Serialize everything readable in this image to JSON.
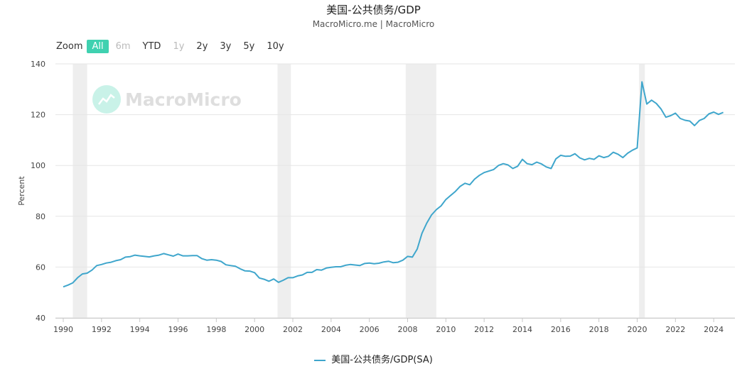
{
  "header": {
    "title": "美国-公共债务/GDP",
    "subtitle": "MacroMicro.me | MacroMicro"
  },
  "zoom": {
    "label": "Zoom",
    "buttons": [
      {
        "label": "All",
        "state": "active"
      },
      {
        "label": "6m",
        "state": "disabled"
      },
      {
        "label": "YTD",
        "state": "normal"
      },
      {
        "label": "1y",
        "state": "disabled"
      },
      {
        "label": "2y",
        "state": "normal"
      },
      {
        "label": "3y",
        "state": "normal"
      },
      {
        "label": "5y",
        "state": "normal"
      },
      {
        "label": "10y",
        "state": "normal"
      }
    ]
  },
  "watermark": {
    "text": "MacroMicro",
    "icon": "chart-logo-icon"
  },
  "colors": {
    "line": "#3fa6cc",
    "recession_band": "#eeeeee",
    "gridline": "#e6e6e6",
    "accent": "#3fd1b0"
  },
  "chart_data": {
    "type": "line",
    "title": "美国-公共债务/GDP",
    "subtitle": "MacroMicro.me | MacroMicro",
    "ylabel": "Percent",
    "xlabel": "",
    "xlim": [
      1990,
      2024.7
    ],
    "ylim": [
      40,
      140
    ],
    "yticks": [
      40,
      60,
      80,
      100,
      120,
      140
    ],
    "xticks": [
      1990,
      1992,
      1994,
      1996,
      1998,
      2000,
      2002,
      2004,
      2006,
      2008,
      2010,
      2012,
      2014,
      2016,
      2018,
      2020,
      2022,
      2024
    ],
    "grid": true,
    "legend_position": "bottom-center",
    "recessions": [
      [
        1990.5,
        1991.25
      ],
      [
        2001.2,
        2001.9
      ],
      [
        2007.9,
        2009.5
      ],
      [
        2020.1,
        2020.4
      ]
    ],
    "series": [
      {
        "name": "美国-公共债务/GDP(SA)",
        "points": [
          [
            1990.0,
            52.2
          ],
          [
            1990.25,
            52.9
          ],
          [
            1990.5,
            53.8
          ],
          [
            1990.75,
            55.8
          ],
          [
            1991.0,
            57.3
          ],
          [
            1991.25,
            57.6
          ],
          [
            1991.5,
            58.8
          ],
          [
            1991.75,
            60.6
          ],
          [
            1992.0,
            61.0
          ],
          [
            1992.25,
            61.6
          ],
          [
            1992.5,
            61.9
          ],
          [
            1992.75,
            62.5
          ],
          [
            1993.0,
            62.9
          ],
          [
            1993.25,
            63.9
          ],
          [
            1993.5,
            64.1
          ],
          [
            1993.75,
            64.7
          ],
          [
            1994.0,
            64.4
          ],
          [
            1994.25,
            64.2
          ],
          [
            1994.5,
            64.0
          ],
          [
            1994.75,
            64.4
          ],
          [
            1995.0,
            64.7
          ],
          [
            1995.25,
            65.3
          ],
          [
            1995.5,
            64.8
          ],
          [
            1995.75,
            64.3
          ],
          [
            1996.0,
            65.1
          ],
          [
            1996.25,
            64.4
          ],
          [
            1996.5,
            64.4
          ],
          [
            1996.75,
            64.5
          ],
          [
            1997.0,
            64.5
          ],
          [
            1997.25,
            63.3
          ],
          [
            1997.5,
            62.7
          ],
          [
            1997.75,
            62.9
          ],
          [
            1998.0,
            62.7
          ],
          [
            1998.25,
            62.2
          ],
          [
            1998.5,
            60.9
          ],
          [
            1998.75,
            60.6
          ],
          [
            1999.0,
            60.3
          ],
          [
            1999.25,
            59.3
          ],
          [
            1999.5,
            58.5
          ],
          [
            1999.75,
            58.4
          ],
          [
            2000.0,
            57.8
          ],
          [
            2000.25,
            55.7
          ],
          [
            2000.5,
            55.2
          ],
          [
            2000.75,
            54.4
          ],
          [
            2001.0,
            55.3
          ],
          [
            2001.25,
            54.0
          ],
          [
            2001.5,
            54.8
          ],
          [
            2001.75,
            55.8
          ],
          [
            2002.0,
            55.8
          ],
          [
            2002.25,
            56.5
          ],
          [
            2002.5,
            56.9
          ],
          [
            2002.75,
            57.9
          ],
          [
            2003.0,
            57.9
          ],
          [
            2003.25,
            59.0
          ],
          [
            2003.5,
            58.8
          ],
          [
            2003.75,
            59.6
          ],
          [
            2004.0,
            59.9
          ],
          [
            2004.25,
            60.1
          ],
          [
            2004.5,
            60.1
          ],
          [
            2004.75,
            60.7
          ],
          [
            2005.0,
            61.0
          ],
          [
            2005.25,
            60.8
          ],
          [
            2005.5,
            60.6
          ],
          [
            2005.75,
            61.4
          ],
          [
            2006.0,
            61.6
          ],
          [
            2006.25,
            61.3
          ],
          [
            2006.5,
            61.5
          ],
          [
            2006.75,
            62.0
          ],
          [
            2007.0,
            62.3
          ],
          [
            2007.25,
            61.7
          ],
          [
            2007.5,
            61.9
          ],
          [
            2007.75,
            62.7
          ],
          [
            2008.0,
            64.2
          ],
          [
            2008.25,
            63.9
          ],
          [
            2008.5,
            67.1
          ],
          [
            2008.75,
            73.3
          ],
          [
            2009.0,
            77.3
          ],
          [
            2009.25,
            80.5
          ],
          [
            2009.5,
            82.6
          ],
          [
            2009.75,
            84.1
          ],
          [
            2010.0,
            86.6
          ],
          [
            2010.25,
            88.2
          ],
          [
            2010.5,
            89.8
          ],
          [
            2010.75,
            91.8
          ],
          [
            2011.0,
            93.0
          ],
          [
            2011.25,
            92.4
          ],
          [
            2011.5,
            94.6
          ],
          [
            2011.75,
            96.1
          ],
          [
            2012.0,
            97.2
          ],
          [
            2012.25,
            97.8
          ],
          [
            2012.5,
            98.4
          ],
          [
            2012.75,
            100.0
          ],
          [
            2013.0,
            100.7
          ],
          [
            2013.25,
            100.2
          ],
          [
            2013.5,
            98.8
          ],
          [
            2013.75,
            99.7
          ],
          [
            2014.0,
            102.4
          ],
          [
            2014.25,
            100.7
          ],
          [
            2014.5,
            100.3
          ],
          [
            2014.75,
            101.3
          ],
          [
            2015.0,
            100.6
          ],
          [
            2015.25,
            99.4
          ],
          [
            2015.5,
            98.8
          ],
          [
            2015.75,
            102.6
          ],
          [
            2016.0,
            104.0
          ],
          [
            2016.25,
            103.6
          ],
          [
            2016.5,
            103.7
          ],
          [
            2016.75,
            104.6
          ],
          [
            2017.0,
            103.0
          ],
          [
            2017.25,
            102.2
          ],
          [
            2017.5,
            102.8
          ],
          [
            2017.75,
            102.4
          ],
          [
            2018.0,
            103.8
          ],
          [
            2018.25,
            103.1
          ],
          [
            2018.5,
            103.6
          ],
          [
            2018.75,
            105.2
          ],
          [
            2019.0,
            104.4
          ],
          [
            2019.25,
            103.1
          ],
          [
            2019.5,
            104.8
          ],
          [
            2019.75,
            106.0
          ],
          [
            2020.0,
            106.9
          ],
          [
            2020.25,
            132.9
          ],
          [
            2020.5,
            124.2
          ],
          [
            2020.75,
            125.7
          ],
          [
            2021.0,
            124.4
          ],
          [
            2021.25,
            122.2
          ],
          [
            2021.5,
            119.0
          ],
          [
            2021.75,
            119.6
          ],
          [
            2022.0,
            120.6
          ],
          [
            2022.25,
            118.5
          ],
          [
            2022.5,
            117.8
          ],
          [
            2022.75,
            117.5
          ],
          [
            2023.0,
            115.7
          ],
          [
            2023.25,
            117.7
          ],
          [
            2023.5,
            118.5
          ],
          [
            2023.75,
            120.3
          ],
          [
            2024.0,
            121.0
          ],
          [
            2024.25,
            120.1
          ],
          [
            2024.5,
            120.9
          ]
        ]
      }
    ]
  }
}
